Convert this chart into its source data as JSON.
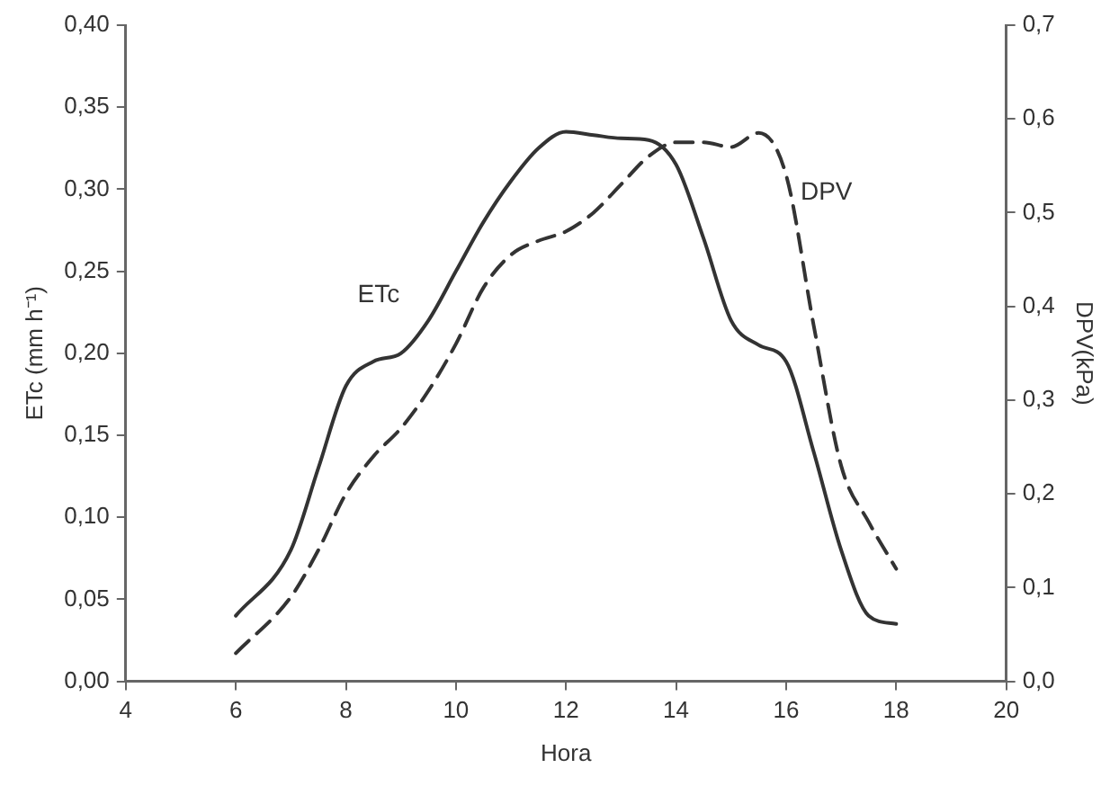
{
  "chart_data": {
    "type": "line",
    "xlabel": "Hora",
    "ylabel": "ETc (mm h⁻¹)",
    "y2label": "DPV(kPa)",
    "x": [
      6,
      7,
      7.5,
      8,
      8.5,
      9,
      9.5,
      10,
      10.5,
      11,
      11.5,
      12,
      12.5,
      13,
      13.5,
      14,
      14.5,
      15,
      15.5,
      16,
      16.5,
      17,
      17.5,
      18
    ],
    "series": [
      {
        "name": "ETc",
        "color": "#333333",
        "line_style": "solid",
        "values": [
          0.04,
          0.08,
          0.13,
          0.18,
          0.195,
          0.2,
          0.22,
          0.25,
          0.28,
          0.305,
          0.325,
          0.335,
          0.333,
          0.331,
          0.33,
          0.315,
          0.27,
          0.22,
          0.205,
          0.195,
          0.14,
          0.08,
          0.04,
          0.035
        ]
      },
      {
        "name": "DPV",
        "color": "#333333",
        "line_style": "dashed",
        "axis": "y2",
        "values": [
          0.03,
          0.09,
          0.14,
          0.2,
          0.24,
          0.27,
          0.31,
          0.36,
          0.42,
          0.455,
          0.47,
          0.48,
          0.5,
          0.53,
          0.56,
          0.575,
          0.575,
          0.57,
          0.585,
          0.54,
          0.38,
          0.23,
          0.17,
          0.12
        ]
      }
    ],
    "xlim": [
      4,
      20
    ],
    "xticks": [
      4,
      6,
      8,
      10,
      12,
      14,
      16,
      18,
      20
    ],
    "ylim": [
      0,
      0.4
    ],
    "yticks": [
      {
        "value": 0,
        "label": "0,00"
      },
      {
        "value": 0.05,
        "label": "0,05"
      },
      {
        "value": 0.1,
        "label": "0,10"
      },
      {
        "value": 0.15,
        "label": "0,15"
      },
      {
        "value": 0.2,
        "label": "0,20"
      },
      {
        "value": 0.25,
        "label": "0,25"
      },
      {
        "value": 0.3,
        "label": "0,30"
      },
      {
        "value": 0.35,
        "label": "0,35"
      },
      {
        "value": 0.4,
        "label": "0,40"
      }
    ],
    "y2lim": [
      0,
      0.7
    ],
    "y2ticks": [
      {
        "value": 0,
        "label": "0,0"
      },
      {
        "value": 0.1,
        "label": "0,1"
      },
      {
        "value": 0.2,
        "label": "0,2"
      },
      {
        "value": 0.3,
        "label": "0,3"
      },
      {
        "value": 0.4,
        "label": "0,4"
      },
      {
        "value": 0.5,
        "label": "0,5"
      },
      {
        "value": 0.6,
        "label": "0,6"
      },
      {
        "value": 0.7,
        "label": "0,7"
      }
    ],
    "grid": false,
    "legend": false,
    "marker": "none"
  }
}
